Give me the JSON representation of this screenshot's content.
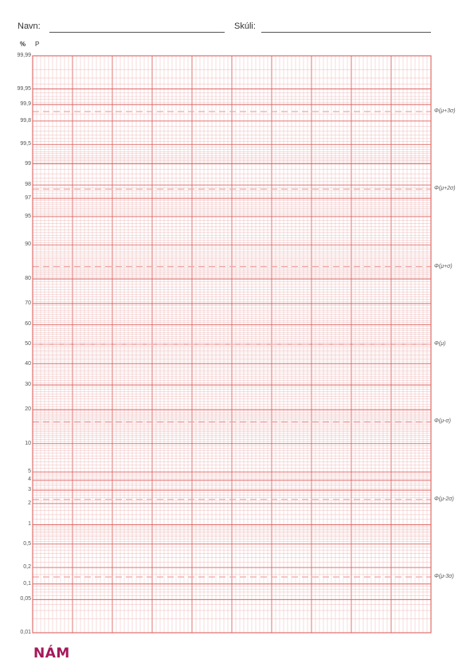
{
  "header": {
    "name_label": "Navn:",
    "school_label": "Skúli:"
  },
  "axis": {
    "percent_label": "%",
    "p_label": "P",
    "ticks": [
      "99,99",
      "99,95",
      "99,9",
      "99,8",
      "99,5",
      "99",
      "98",
      "97",
      "95",
      "90",
      "80",
      "70",
      "60",
      "50",
      "40",
      "30",
      "20",
      "10",
      "5",
      "4",
      "3",
      "2",
      "1",
      "0,5",
      "0,2",
      "0,1",
      "0,05",
      "0,01"
    ]
  },
  "sigma_labels": [
    "Φ(μ+3σ)",
    "Φ(μ+2σ)",
    "Φ(μ+σ)",
    "Φ(μ)",
    "Φ(μ-σ)",
    "Φ(μ-2σ)",
    "Φ(μ-3σ)"
  ],
  "logo": {
    "text": "NÁM"
  },
  "colors": {
    "grid": "#e8a0a0",
    "grid_strong": "#d9534f",
    "sigma_dash": "#f0a8a8",
    "logo": "#a3195b"
  }
}
